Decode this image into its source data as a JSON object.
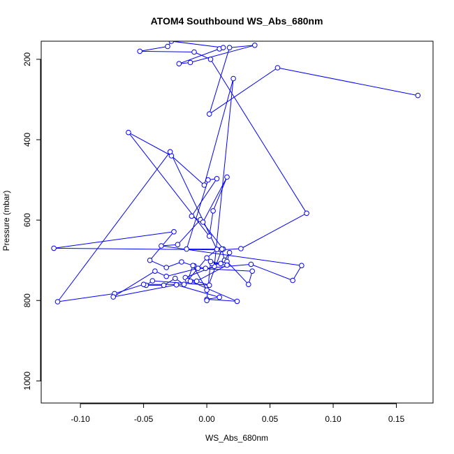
{
  "chart_data": {
    "type": "line",
    "title": "ATOM4 Southbound WS_Abs_680nm",
    "xlabel": "WS_Abs_680nm",
    "ylabel": "Pressure (mbar)",
    "xlim": [
      -0.131,
      0.179
    ],
    "ylim": [
      1055,
      155
    ],
    "y_reversed": true,
    "x_ticks": [
      -0.1,
      -0.05,
      0.0,
      0.05,
      0.1,
      0.15
    ],
    "x_tick_labels": [
      "-0.10",
      "-0.05",
      "0.00",
      "0.05",
      "0.10",
      "0.15"
    ],
    "y_ticks": [
      200,
      400,
      600,
      800,
      1000
    ],
    "y_tick_labels": [
      "200",
      "400",
      "600",
      "800",
      "1000"
    ],
    "grid": false,
    "series": [
      {
        "color": "#0000ff",
        "marker": "open-circle",
        "x": [
          0.167,
          0.056,
          0.002,
          0.018,
          0.038,
          -0.013,
          -0.022,
          0.01,
          0.013,
          -0.028,
          -0.031,
          -0.053,
          -0.01,
          0.003,
          0.079,
          0.027,
          0.011,
          -0.121,
          -0.026,
          -0.045,
          -0.032,
          -0.02,
          -0.01,
          -0.001,
          0.035,
          0.068,
          0.075,
          -0.036,
          -0.023,
          -0.005,
          0.013,
          -0.016,
          0.001,
          0.008,
          -0.012,
          -0.003,
          0.016,
          0.005,
          0.002,
          -0.062,
          -0.028,
          -0.002,
          0.021,
          0.006,
          -0.017,
          0.002,
          -0.043,
          -0.048,
          -0.034,
          -0.025,
          -0.018,
          -0.05,
          -0.073,
          -0.118,
          -0.029,
          0.008,
          0.0,
          -0.015,
          -0.011,
          0.0,
          0.012,
          0.014,
          0.018,
          0.016,
          0.033,
          0.036,
          -0.007,
          -0.032,
          -0.041,
          -0.074,
          -0.024,
          0.01,
          0.0,
          0.024,
          -0.013,
          -0.008,
          0.016,
          0.004,
          0.011,
          0.003,
          0.0
        ],
        "y": [
          290,
          221,
          336,
          171,
          165,
          208,
          211,
          174,
          171,
          155,
          168,
          180,
          182,
          200,
          583,
          671,
          674,
          670,
          629,
          700,
          718,
          704,
          714,
          720,
          710,
          750,
          713,
          664,
          661,
          599,
          672,
          672,
          500,
          497,
          590,
          605,
          493,
          577,
          640,
          382,
          440,
          513,
          248,
          715,
          743,
          762,
          751,
          762,
          762,
          745,
          760,
          760,
          783,
          803,
          430,
          673,
          694,
          750,
          713,
          774,
          672,
          700,
          681,
          703,
          760,
          727,
          720,
          740,
          727,
          791,
          761,
          792,
          797,
          802,
          752,
          752,
          712,
          708,
          708,
          703,
          800
        ]
      }
    ],
    "line_color": "#0000ff"
  }
}
